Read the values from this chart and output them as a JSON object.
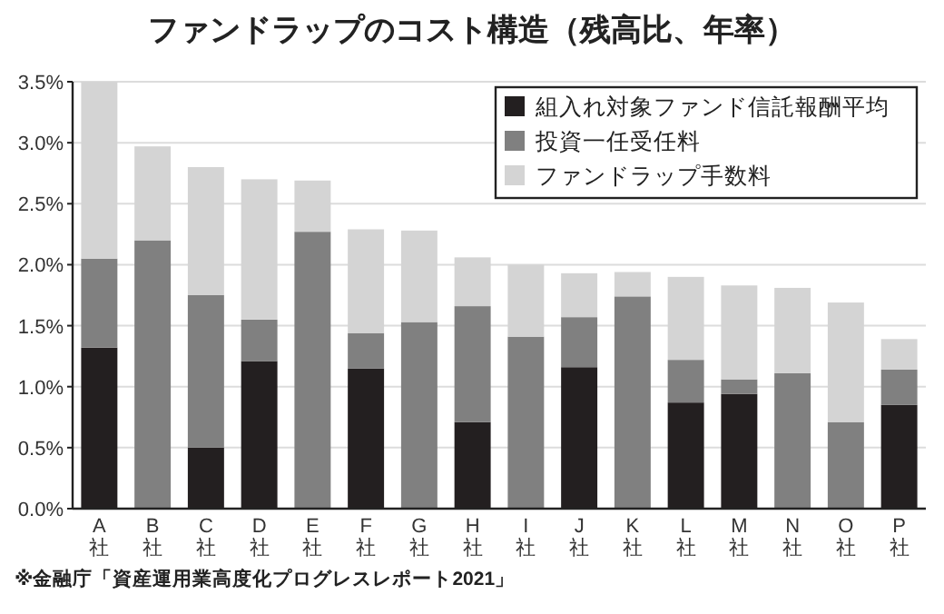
{
  "chart_data": {
    "type": "bar",
    "stacked": true,
    "title": "ファンドラップのコスト構造（残高比、年率）",
    "categories": [
      "A社",
      "B社",
      "C社",
      "D社",
      "E社",
      "F社",
      "G社",
      "H社",
      "I社",
      "J社",
      "K社",
      "L社",
      "M社",
      "N社",
      "O社",
      "P社"
    ],
    "series": [
      {
        "name": "組入れ対象ファンド信託報酬平均",
        "color": "#231f20",
        "values": [
          1.32,
          null,
          0.5,
          1.21,
          null,
          1.15,
          null,
          0.71,
          null,
          1.16,
          null,
          0.87,
          0.94,
          null,
          null,
          0.85
        ]
      },
      {
        "name": "投資一任受任料",
        "color": "#808080",
        "values": [
          0.73,
          2.2,
          1.25,
          0.34,
          2.27,
          0.29,
          1.53,
          0.95,
          1.41,
          0.41,
          1.74,
          0.35,
          0.12,
          1.11,
          0.71,
          0.29
        ]
      },
      {
        "name": "ファンドラップ手数料",
        "color": "#d4d4d4",
        "values": [
          1.45,
          0.77,
          1.05,
          1.15,
          0.42,
          0.85,
          0.75,
          0.4,
          0.59,
          0.36,
          0.2,
          0.68,
          0.77,
          0.7,
          0.98,
          0.25
        ]
      }
    ],
    "ylim": [
      0,
      3.5
    ],
    "yticks": [
      {
        "value": 0,
        "label": "0.0%"
      },
      {
        "value": 0.5,
        "label": "0.5%"
      },
      {
        "value": 1,
        "label": "1.0%"
      },
      {
        "value": 1.5,
        "label": "1.5%"
      },
      {
        "value": 2,
        "label": "2.0%"
      },
      {
        "value": 2.5,
        "label": "2.5%"
      },
      {
        "value": 3,
        "label": "3.0%"
      },
      {
        "value": 3.5,
        "label": "3.5%"
      }
    ],
    "grid": "y",
    "legend": "top right",
    "annotations": [
      "※金融庁「資産運用業高度化プログレスレポート2021」"
    ]
  }
}
